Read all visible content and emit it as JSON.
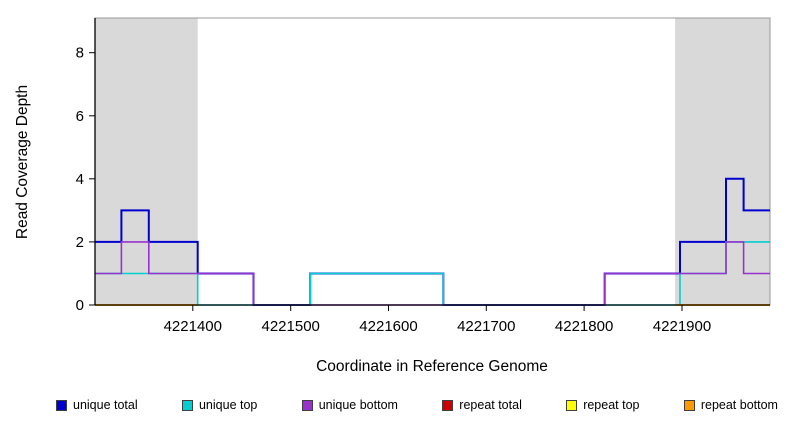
{
  "chart_data": {
    "type": "line",
    "style": "step",
    "title": "",
    "xlabel": "Coordinate in Reference Genome",
    "ylabel": "Read Coverage Depth",
    "xlim": [
      4221300,
      4221990
    ],
    "ylim": [
      0,
      9.1
    ],
    "x_ticks": [
      4221400,
      4221500,
      4221600,
      4221700,
      4221800,
      4221900
    ],
    "y_ticks": [
      0,
      2,
      4,
      6,
      8
    ],
    "grid": false,
    "plot_bg": "#ffffff",
    "box_color": "#999999",
    "axis_color": "#000000",
    "shaded_regions": [
      {
        "name": "repeat-region-left",
        "start": 4221300,
        "end": 4221405,
        "color": "#d9d9d9"
      },
      {
        "name": "repeat-region-right",
        "start": 4221893,
        "end": 4221990,
        "color": "#d9d9d9"
      }
    ],
    "series": [
      {
        "name": "unique total",
        "color": "#0000cd",
        "width": 2,
        "segments": [
          [
            [
              4221300,
              2
            ],
            [
              4221327,
              3
            ],
            [
              4221355,
              2
            ],
            [
              4221405,
              1
            ],
            [
              4221462,
              0
            ],
            [
              4221520,
              1
            ],
            [
              4221656,
              0
            ],
            [
              4221821,
              1
            ],
            [
              4221898,
              2
            ],
            [
              4221945,
              4
            ],
            [
              4221963,
              3
            ],
            [
              4221990,
              3
            ]
          ]
        ]
      },
      {
        "name": "unique top",
        "color": "#00ced1",
        "width": 1.6,
        "segments": [
          [
            [
              4221300,
              1
            ],
            [
              4221405,
              0
            ],
            [
              4221520,
              1
            ],
            [
              4221656,
              0
            ],
            [
              4221898,
              1
            ],
            [
              4221945,
              2
            ],
            [
              4221990,
              2
            ]
          ]
        ]
      },
      {
        "name": "unique bottom",
        "color": "#9932cc",
        "width": 1.6,
        "segments": [
          [
            [
              4221300,
              1
            ],
            [
              4221327,
              2
            ],
            [
              4221355,
              1
            ],
            [
              4221462,
              0
            ],
            [
              4221821,
              1
            ],
            [
              4221945,
              2
            ],
            [
              4221963,
              1
            ],
            [
              4221990,
              1
            ]
          ]
        ]
      },
      {
        "name": "repeat total",
        "color": "#cc0000",
        "width": 1.6,
        "segments": [
          [
            [
              4221300,
              0
            ],
            [
              4221405,
              0
            ]
          ],
          [
            [
              4221893,
              0
            ],
            [
              4221990,
              0
            ]
          ]
        ]
      },
      {
        "name": "repeat top",
        "color": "#ffff00",
        "width": 1.6,
        "segments": [
          [
            [
              4221300,
              0
            ],
            [
              4221405,
              0
            ]
          ],
          [
            [
              4221893,
              0
            ],
            [
              4221990,
              0
            ]
          ]
        ]
      },
      {
        "name": "repeat bottom",
        "color": "#ff9900",
        "width": 1.6,
        "segments": [
          [
            [
              4221300,
              0
            ],
            [
              4221405,
              0
            ]
          ],
          [
            [
              4221893,
              0
            ],
            [
              4221990,
              0
            ]
          ]
        ]
      }
    ],
    "legend": {
      "position": "bottom",
      "items": [
        {
          "label": "unique total",
          "color": "#0000cd"
        },
        {
          "label": "unique top",
          "color": "#00ced1"
        },
        {
          "label": "unique bottom",
          "color": "#9932cc"
        },
        {
          "label": "repeat total",
          "color": "#cc0000"
        },
        {
          "label": "repeat top",
          "color": "#ffff00"
        },
        {
          "label": "repeat bottom",
          "color": "#ff9900"
        }
      ]
    }
  }
}
